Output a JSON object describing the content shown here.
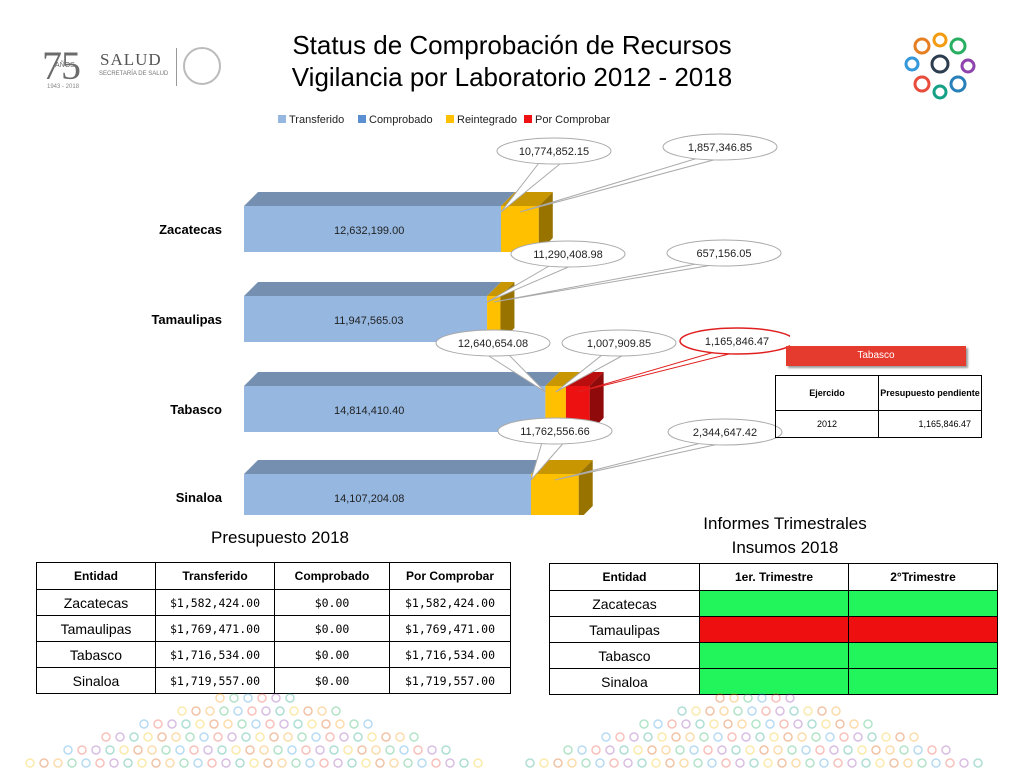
{
  "header": {
    "title_line1": "Status de Comprobación de Recursos",
    "title_line2": "Vigilancia por Laboratorio 2012 - 2018"
  },
  "logo": {
    "number": "75",
    "anos": "AÑOS",
    "years": "1943 - 2018",
    "brand": "SALUD",
    "subtitle": "SECRETARÍA DE SALUD"
  },
  "chart_data": {
    "type": "bar",
    "orientation": "horizontal",
    "stacked": true,
    "categories": [
      "Zacatecas",
      "Tamaulipas",
      "Tabasco",
      "Sinaloa"
    ],
    "series": [
      {
        "name": "Transferido",
        "color": "#95b7e0",
        "values": [
          12632199.0,
          11947565.03,
          14814410.4,
          14107204.08
        ],
        "labels": [
          "12,632,199.00",
          "11,947,565.03",
          "14,814,410.40",
          "14,107,204.08"
        ]
      },
      {
        "name": "Comprobado",
        "color": "#5a8fd2",
        "values": [
          10774852.15,
          11290408.98,
          12640654.08,
          11762556.66
        ],
        "labels": [
          "10,774,852.15",
          "11,290,408.98",
          "12,640,654.08",
          "11,762,556.66"
        ]
      },
      {
        "name": "Reintegrado",
        "color": "#ffc000",
        "values": [
          1857346.85,
          657156.05,
          1007909.85,
          2344647.42
        ],
        "labels": [
          "1,857,346.85",
          "657,156.05",
          "1,007,909.85",
          "2,344,647.42"
        ]
      },
      {
        "name": "Por Comprobar",
        "color": "#ee1111",
        "values": [
          0,
          0,
          1165846.47,
          0
        ],
        "labels": [
          "",
          "",
          "1,165,846.47",
          ""
        ]
      }
    ],
    "legend_position": "top"
  },
  "side_table": {
    "tag": "Tabasco",
    "headers": [
      "Ejercido",
      "Presupuesto pendiente"
    ],
    "row": [
      "2012",
      "1,165,846.47"
    ]
  },
  "budget_table": {
    "caption": "Presupuesto 2018",
    "headers": [
      "Entidad",
      "Transferido",
      "Comprobado",
      "Por Comprobar"
    ],
    "rows": [
      [
        "Zacatecas",
        "$1,582,424.00",
        "$0.00",
        "$1,582,424.00"
      ],
      [
        "Tamaulipas",
        "$1,769,471.00",
        "$0.00",
        "$1,769,471.00"
      ],
      [
        "Tabasco",
        "$1,716,534.00",
        "$0.00",
        "$1,716,534.00"
      ],
      [
        "Sinaloa",
        "$1,719,557.00",
        "$0.00",
        "$1,719,557.00"
      ]
    ]
  },
  "reports_table": {
    "caption_line1": "Informes Trimestrales",
    "caption_line2": "Insumos 2018",
    "headers": [
      "Entidad",
      "1er. Trimestre",
      "2°Trimestre"
    ],
    "rows": [
      {
        "entity": "Zacatecas",
        "q1": "green",
        "q2": "green"
      },
      {
        "entity": "Tamaulipas",
        "q1": "red",
        "q2": "red"
      },
      {
        "entity": "Tabasco",
        "q1": "green",
        "q2": "green"
      },
      {
        "entity": "Sinaloa",
        "q1": "green",
        "q2": "green"
      }
    ]
  }
}
